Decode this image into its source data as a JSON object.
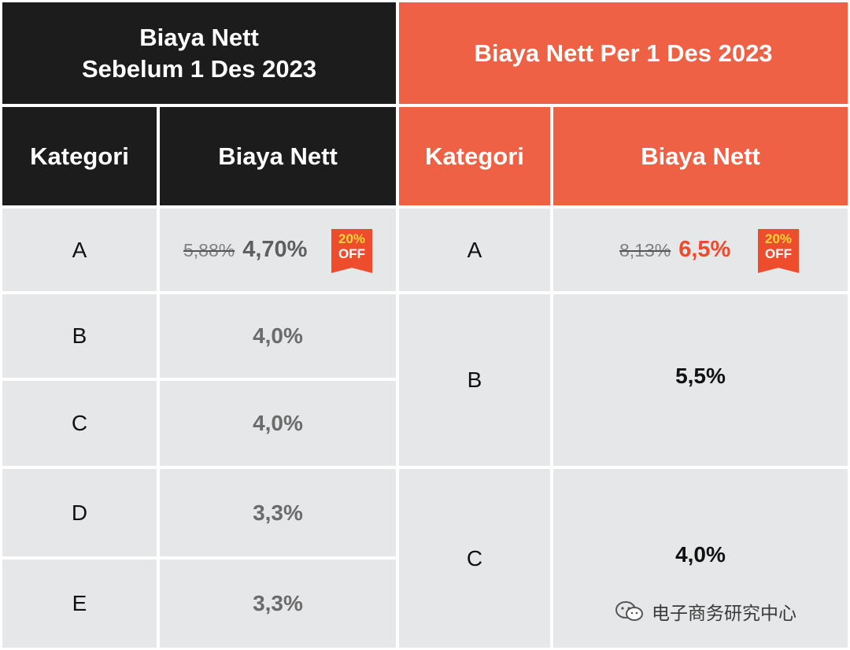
{
  "left_table": {
    "title_line1": "Biaya Nett",
    "title_line2": "Sebelum 1 Des 2023",
    "col_kategori": "Kategori",
    "col_biaya": "Biaya Nett",
    "rows": [
      {
        "kategori": "A",
        "old_value": "5,88%",
        "value": "4,70%",
        "badge_top": "20%",
        "badge_bottom": "OFF"
      },
      {
        "kategori": "B",
        "value": "4,0%"
      },
      {
        "kategori": "C",
        "value": "4,0%"
      },
      {
        "kategori": "D",
        "value": "3,3%"
      },
      {
        "kategori": "E",
        "value": "3,3%"
      }
    ]
  },
  "right_table": {
    "title": "Biaya Nett Per 1 Des 2023",
    "col_kategori": "Kategori",
    "col_biaya": "Biaya Nett",
    "rows": [
      {
        "kategori": "A",
        "old_value": "8,13%",
        "value": "6,5%",
        "badge_top": "20%",
        "badge_bottom": "OFF"
      },
      {
        "kategori": "B",
        "value": "5,5%"
      },
      {
        "kategori": "C",
        "value": "4,0%"
      }
    ]
  },
  "watermark": {
    "text": "电子商务研究中心",
    "icon": "wechat-icon"
  },
  "colors": {
    "header_dark": "#1c1c1c",
    "header_orange": "#ee6144",
    "body_bg": "#e6e7e8",
    "highlight_red": "#ee4a2b",
    "badge_bg": "#ee4d2d",
    "badge_text_yellow": "#ffd43b"
  }
}
